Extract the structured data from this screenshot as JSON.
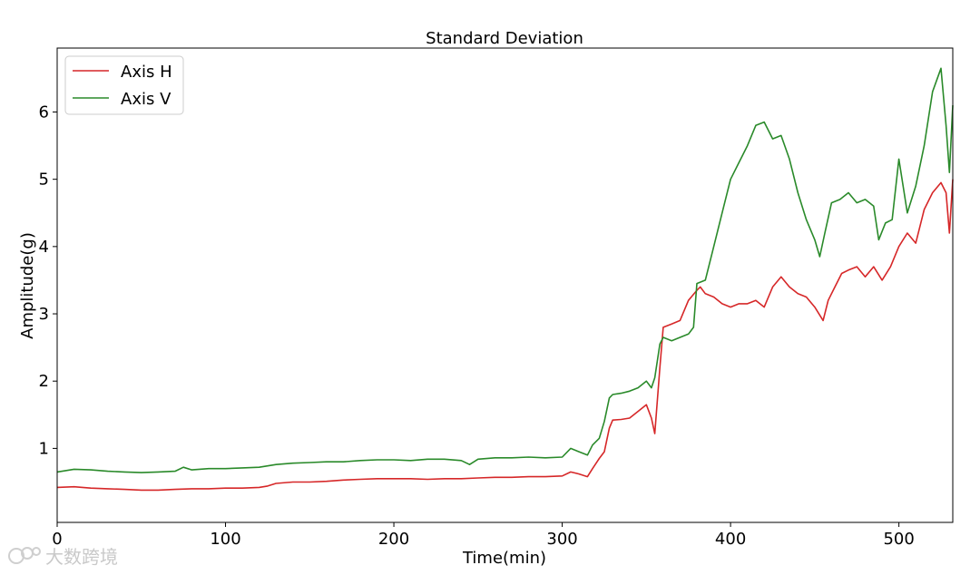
{
  "chart_data": {
    "type": "line",
    "title": "Standard Deviation",
    "xlabel": "Time(min)",
    "ylabel": "Amplitude(g)",
    "xlim": [
      0,
      532
    ],
    "ylim": [
      -0.1,
      6.95
    ],
    "xticks": [
      0,
      100,
      200,
      300,
      400,
      500
    ],
    "yticks": [
      1,
      2,
      3,
      4,
      5,
      6
    ],
    "grid": false,
    "legend_position": "top-left",
    "series": [
      {
        "name": "Axis H",
        "color": "#d62728",
        "points": [
          [
            0,
            0.42
          ],
          [
            10,
            0.43
          ],
          [
            20,
            0.41
          ],
          [
            30,
            0.4
          ],
          [
            40,
            0.39
          ],
          [
            50,
            0.38
          ],
          [
            60,
            0.38
          ],
          [
            70,
            0.39
          ],
          [
            80,
            0.4
          ],
          [
            90,
            0.4
          ],
          [
            100,
            0.41
          ],
          [
            110,
            0.41
          ],
          [
            120,
            0.42
          ],
          [
            125,
            0.44
          ],
          [
            130,
            0.48
          ],
          [
            140,
            0.5
          ],
          [
            150,
            0.5
          ],
          [
            160,
            0.51
          ],
          [
            170,
            0.53
          ],
          [
            180,
            0.54
          ],
          [
            190,
            0.55
          ],
          [
            200,
            0.55
          ],
          [
            210,
            0.55
          ],
          [
            220,
            0.54
          ],
          [
            230,
            0.55
          ],
          [
            240,
            0.55
          ],
          [
            250,
            0.56
          ],
          [
            260,
            0.57
          ],
          [
            270,
            0.57
          ],
          [
            280,
            0.58
          ],
          [
            290,
            0.58
          ],
          [
            300,
            0.59
          ],
          [
            305,
            0.65
          ],
          [
            310,
            0.62
          ],
          [
            315,
            0.58
          ],
          [
            318,
            0.7
          ],
          [
            322,
            0.85
          ],
          [
            325,
            0.95
          ],
          [
            328,
            1.3
          ],
          [
            330,
            1.42
          ],
          [
            335,
            1.43
          ],
          [
            340,
            1.45
          ],
          [
            345,
            1.55
          ],
          [
            350,
            1.65
          ],
          [
            353,
            1.45
          ],
          [
            355,
            1.22
          ],
          [
            358,
            2.2
          ],
          [
            360,
            2.8
          ],
          [
            365,
            2.85
          ],
          [
            370,
            2.9
          ],
          [
            375,
            3.2
          ],
          [
            380,
            3.35
          ],
          [
            382,
            3.4
          ],
          [
            385,
            3.3
          ],
          [
            390,
            3.25
          ],
          [
            395,
            3.15
          ],
          [
            400,
            3.1
          ],
          [
            405,
            3.15
          ],
          [
            410,
            3.15
          ],
          [
            415,
            3.2
          ],
          [
            420,
            3.1
          ],
          [
            425,
            3.4
          ],
          [
            430,
            3.55
          ],
          [
            435,
            3.4
          ],
          [
            440,
            3.3
          ],
          [
            445,
            3.25
          ],
          [
            450,
            3.1
          ],
          [
            455,
            2.9
          ],
          [
            458,
            3.2
          ],
          [
            462,
            3.4
          ],
          [
            466,
            3.6
          ],
          [
            470,
            3.65
          ],
          [
            475,
            3.7
          ],
          [
            480,
            3.55
          ],
          [
            485,
            3.7
          ],
          [
            490,
            3.5
          ],
          [
            495,
            3.7
          ],
          [
            500,
            4.0
          ],
          [
            505,
            4.2
          ],
          [
            510,
            4.05
          ],
          [
            515,
            4.55
          ],
          [
            520,
            4.8
          ],
          [
            525,
            4.95
          ],
          [
            528,
            4.8
          ],
          [
            530,
            4.2
          ],
          [
            532,
            5.0
          ]
        ]
      },
      {
        "name": "Axis V",
        "color": "#2a8a2a",
        "points": [
          [
            0,
            0.65
          ],
          [
            10,
            0.69
          ],
          [
            20,
            0.68
          ],
          [
            30,
            0.66
          ],
          [
            40,
            0.65
          ],
          [
            50,
            0.64
          ],
          [
            60,
            0.65
          ],
          [
            70,
            0.66
          ],
          [
            75,
            0.72
          ],
          [
            80,
            0.68
          ],
          [
            90,
            0.7
          ],
          [
            100,
            0.7
          ],
          [
            110,
            0.71
          ],
          [
            120,
            0.72
          ],
          [
            125,
            0.74
          ],
          [
            130,
            0.76
          ],
          [
            140,
            0.78
          ],
          [
            150,
            0.79
          ],
          [
            160,
            0.8
          ],
          [
            170,
            0.8
          ],
          [
            180,
            0.82
          ],
          [
            190,
            0.83
          ],
          [
            200,
            0.83
          ],
          [
            210,
            0.82
          ],
          [
            220,
            0.84
          ],
          [
            230,
            0.84
          ],
          [
            240,
            0.82
          ],
          [
            245,
            0.76
          ],
          [
            250,
            0.84
          ],
          [
            260,
            0.86
          ],
          [
            270,
            0.86
          ],
          [
            280,
            0.87
          ],
          [
            290,
            0.86
          ],
          [
            300,
            0.87
          ],
          [
            305,
            1.0
          ],
          [
            310,
            0.95
          ],
          [
            315,
            0.9
          ],
          [
            318,
            1.05
          ],
          [
            322,
            1.15
          ],
          [
            325,
            1.4
          ],
          [
            328,
            1.75
          ],
          [
            330,
            1.8
          ],
          [
            335,
            1.82
          ],
          [
            340,
            1.85
          ],
          [
            345,
            1.9
          ],
          [
            350,
            2.0
          ],
          [
            353,
            1.9
          ],
          [
            355,
            2.05
          ],
          [
            358,
            2.55
          ],
          [
            360,
            2.65
          ],
          [
            365,
            2.6
          ],
          [
            370,
            2.65
          ],
          [
            375,
            2.7
          ],
          [
            378,
            2.8
          ],
          [
            380,
            3.45
          ],
          [
            385,
            3.5
          ],
          [
            390,
            4.0
          ],
          [
            395,
            4.5
          ],
          [
            400,
            5.0
          ],
          [
            405,
            5.25
          ],
          [
            410,
            5.5
          ],
          [
            415,
            5.8
          ],
          [
            420,
            5.85
          ],
          [
            425,
            5.6
          ],
          [
            430,
            5.65
          ],
          [
            435,
            5.3
          ],
          [
            440,
            4.8
          ],
          [
            445,
            4.4
          ],
          [
            450,
            4.1
          ],
          [
            453,
            3.85
          ],
          [
            456,
            4.2
          ],
          [
            460,
            4.65
          ],
          [
            465,
            4.7
          ],
          [
            470,
            4.8
          ],
          [
            475,
            4.65
          ],
          [
            480,
            4.7
          ],
          [
            485,
            4.6
          ],
          [
            488,
            4.1
          ],
          [
            492,
            4.35
          ],
          [
            496,
            4.4
          ],
          [
            500,
            5.3
          ],
          [
            505,
            4.5
          ],
          [
            510,
            4.9
          ],
          [
            515,
            5.5
          ],
          [
            520,
            6.3
          ],
          [
            525,
            6.65
          ],
          [
            528,
            5.8
          ],
          [
            530,
            5.1
          ],
          [
            532,
            6.1
          ]
        ]
      }
    ]
  },
  "watermark": {
    "text": "大数跨境",
    "icon": "watermark-logo-icon"
  }
}
